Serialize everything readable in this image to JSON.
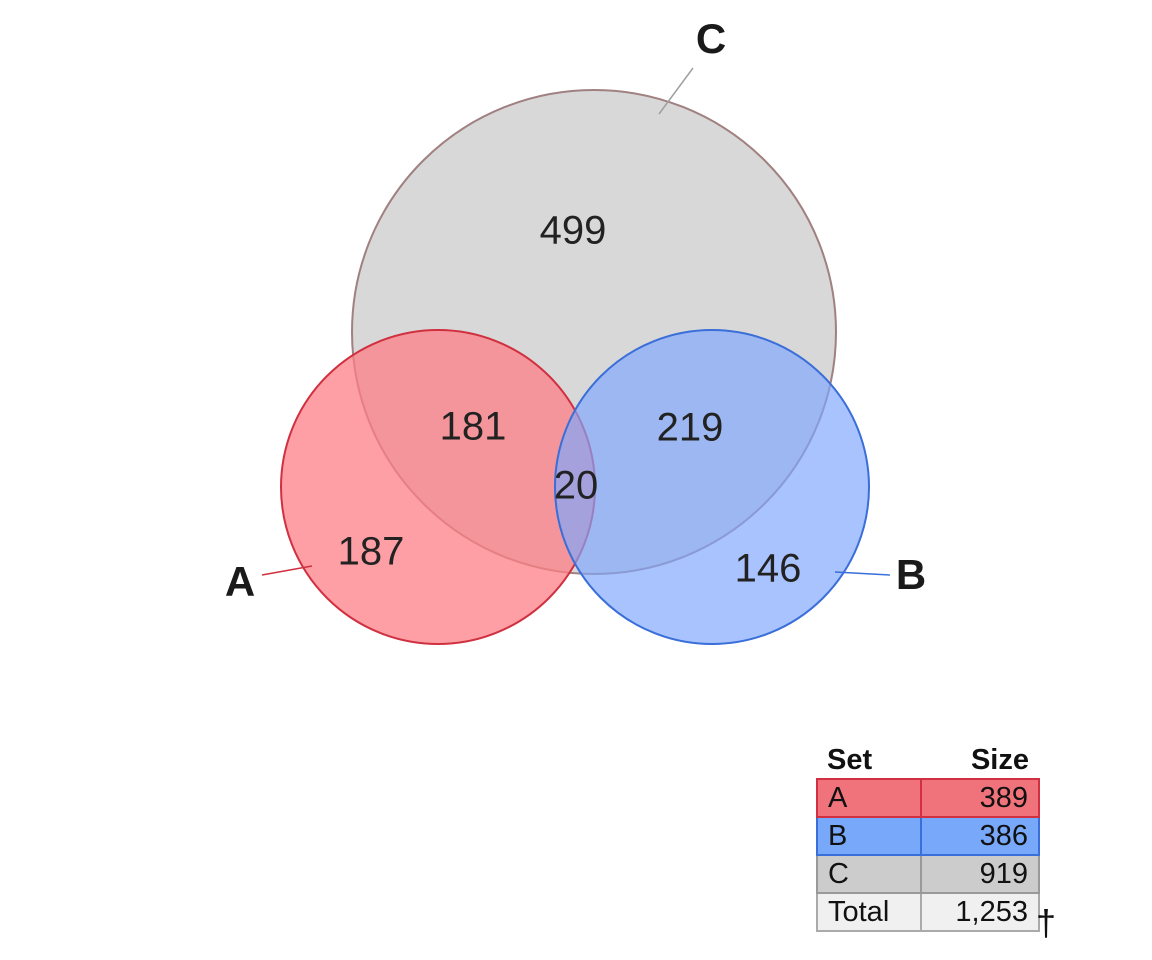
{
  "sets": [
    {
      "name": "A",
      "size": "389",
      "fill": "#fc7f86",
      "stroke": "#d03040",
      "table_color": "#f0737b",
      "table_border": "#d0303f"
    },
    {
      "name": "B",
      "size": "386",
      "fill": "#7fa6fc",
      "stroke": "#3a6ed8",
      "table_color": "#77a8fa",
      "table_border": "#3a6ed8"
    },
    {
      "name": "C",
      "size": "919",
      "fill": "#c8c8c8",
      "stroke": "#a08080",
      "table_color": "#cccccc",
      "table_border": "#999999"
    }
  ],
  "regions": {
    "A_only": "187",
    "B_only": "146",
    "C_only": "499",
    "A_C": "181",
    "B_C": "219",
    "A_B_C": "20"
  },
  "table": {
    "header_set": "Set",
    "header_size": "Size",
    "total_label": "Total",
    "total_value": "1,253",
    "footnote_mark": "†"
  }
}
